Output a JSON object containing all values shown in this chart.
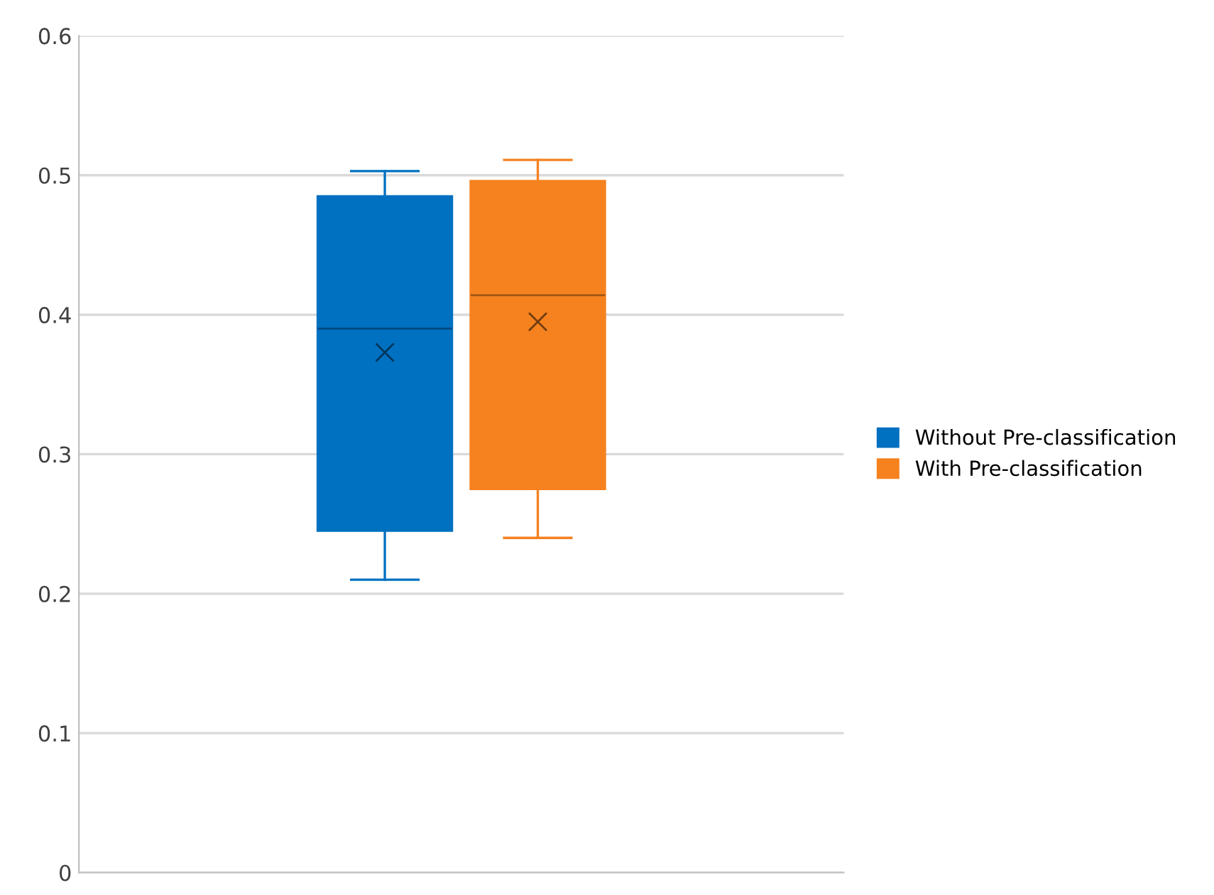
{
  "chart_data": {
    "type": "box",
    "categories": [
      null
    ],
    "series": [
      {
        "name": "Without Pre-classification",
        "color": "#0070c0",
        "boxes": [
          {
            "low": 0.21,
            "q1": 0.245,
            "median": 0.39,
            "q3": 0.485,
            "high": 0.503,
            "mean": 0.373
          }
        ]
      },
      {
        "name": "With Pre-classification",
        "color": "#f5821f",
        "boxes": [
          {
            "low": 0.24,
            "q1": 0.275,
            "median": 0.414,
            "q3": 0.496,
            "high": 0.511,
            "mean": 0.395
          }
        ]
      }
    ],
    "ylim": [
      0,
      0.6
    ],
    "yticks": [
      0,
      0.1,
      0.2,
      0.3,
      0.4,
      0.5,
      0.6
    ],
    "grid": "y",
    "legend": "right",
    "marker": "cross"
  }
}
